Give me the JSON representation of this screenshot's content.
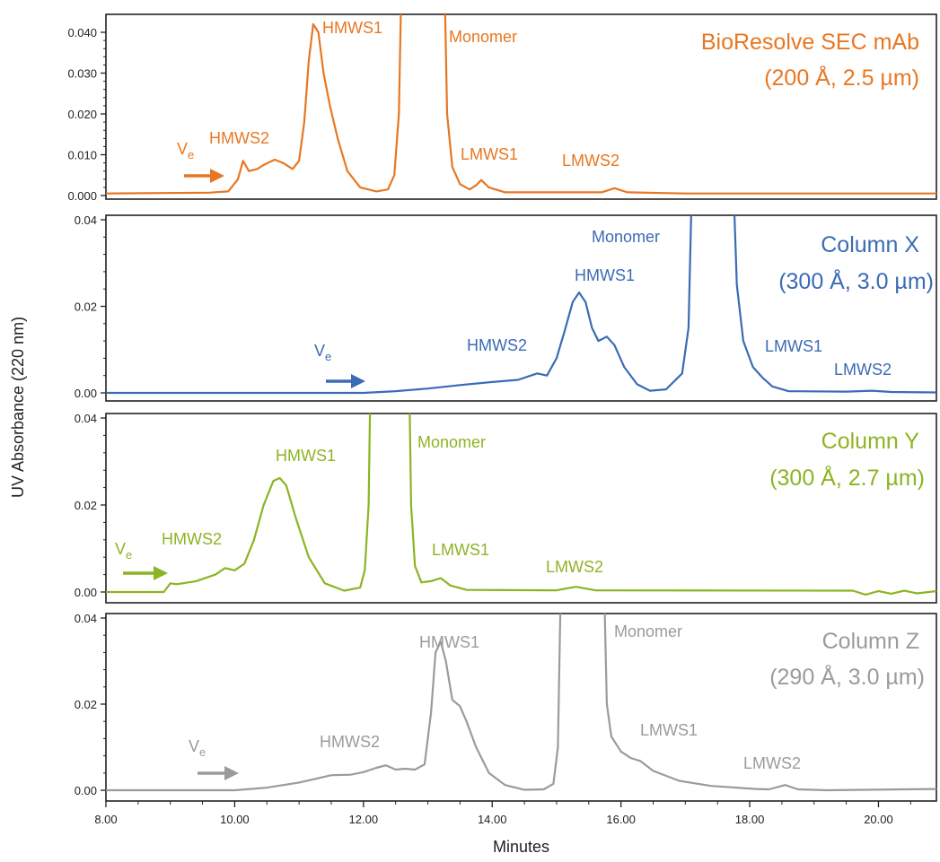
{
  "chart_data": {
    "type": "line",
    "xlabel": "Minutes",
    "ylabel": "UV Absorbance (220 nm)",
    "x_ticks": [
      "8.00",
      "10.00",
      "12.00",
      "14.00",
      "16.00",
      "18.00",
      "20.00"
    ],
    "xlim": [
      8.0,
      20.9
    ],
    "grid": false,
    "legend": "none",
    "panels": [
      {
        "name_line1": "BioResolve SEC mAb",
        "name_line2": "(200 Å, 2.5 µm)",
        "color": "#e87722",
        "ylim": [
          0.0,
          0.044
        ],
        "y_ticks": [
          {
            "v": 0.0,
            "label": "0.000"
          },
          {
            "v": 0.01,
            "label": "0.010"
          },
          {
            "v": 0.02,
            "label": "0.020"
          },
          {
            "v": 0.03,
            "label": "0.030"
          },
          {
            "v": 0.04,
            "label": "0.040"
          }
        ],
        "marker_text": "V",
        "marker_sub": "e",
        "peaks": {
          "monomer": "Monomer",
          "hmws1": "HMWS1",
          "hmws2": "HMWS2",
          "lmws1": "LMWS1",
          "lmws2": "LMWS2"
        },
        "points": [
          [
            8.0,
            0.0005
          ],
          [
            9.6,
            0.0007
          ],
          [
            9.9,
            0.001
          ],
          [
            10.05,
            0.004
          ],
          [
            10.13,
            0.0085
          ],
          [
            10.22,
            0.006
          ],
          [
            10.35,
            0.0065
          ],
          [
            10.45,
            0.0075
          ],
          [
            10.62,
            0.0088
          ],
          [
            10.75,
            0.008
          ],
          [
            10.9,
            0.0065
          ],
          [
            11.0,
            0.0085
          ],
          [
            11.08,
            0.018
          ],
          [
            11.15,
            0.033
          ],
          [
            11.22,
            0.042
          ],
          [
            11.3,
            0.04
          ],
          [
            11.38,
            0.03
          ],
          [
            11.48,
            0.022
          ],
          [
            11.6,
            0.014
          ],
          [
            11.75,
            0.006
          ],
          [
            11.95,
            0.002
          ],
          [
            12.2,
            0.001
          ],
          [
            12.38,
            0.0015
          ],
          [
            12.48,
            0.005
          ],
          [
            12.55,
            0.02
          ],
          [
            12.6,
            0.06
          ],
          [
            13.25,
            0.06
          ],
          [
            13.3,
            0.02
          ],
          [
            13.38,
            0.007
          ],
          [
            13.5,
            0.0028
          ],
          [
            13.65,
            0.0015
          ],
          [
            13.75,
            0.0025
          ],
          [
            13.83,
            0.0038
          ],
          [
            13.95,
            0.002
          ],
          [
            14.2,
            0.0008
          ],
          [
            15.7,
            0.0008
          ],
          [
            15.9,
            0.0018
          ],
          [
            16.1,
            0.0008
          ],
          [
            17.0,
            0.0005
          ],
          [
            20.9,
            0.0005
          ]
        ]
      },
      {
        "name_line1": "Column X",
        "name_line2": "(300 Å, 3.0 µm)",
        "color": "#3b6bb5",
        "ylim": [
          -0.001,
          0.04
        ],
        "y_ticks": [
          {
            "v": 0.0,
            "label": "0.00"
          },
          {
            "v": 0.02,
            "label": "0.02"
          },
          {
            "v": 0.04,
            "label": "0.04"
          }
        ],
        "marker_text": "V",
        "marker_sub": "e",
        "peaks": {
          "monomer": "Monomer",
          "hmws1": "HMWS1",
          "hmws2": "HMWS2",
          "lmws1": "LMWS1",
          "lmws2": "LMWS2"
        },
        "points": [
          [
            8.0,
            0.0
          ],
          [
            12.0,
            0.0
          ],
          [
            12.5,
            0.0004
          ],
          [
            13.0,
            0.001
          ],
          [
            13.5,
            0.0018
          ],
          [
            14.0,
            0.0025
          ],
          [
            14.4,
            0.003
          ],
          [
            14.7,
            0.0045
          ],
          [
            14.85,
            0.004
          ],
          [
            15.0,
            0.008
          ],
          [
            15.12,
            0.014
          ],
          [
            15.25,
            0.021
          ],
          [
            15.35,
            0.0232
          ],
          [
            15.45,
            0.021
          ],
          [
            15.55,
            0.015
          ],
          [
            15.65,
            0.012
          ],
          [
            15.78,
            0.013
          ],
          [
            15.9,
            0.011
          ],
          [
            16.05,
            0.006
          ],
          [
            16.25,
            0.002
          ],
          [
            16.45,
            0.0005
          ],
          [
            16.7,
            0.0008
          ],
          [
            16.95,
            0.0045
          ],
          [
            17.05,
            0.015
          ],
          [
            17.12,
            0.06
          ],
          [
            17.72,
            0.06
          ],
          [
            17.8,
            0.025
          ],
          [
            17.9,
            0.012
          ],
          [
            18.05,
            0.006
          ],
          [
            18.2,
            0.0035
          ],
          [
            18.35,
            0.0015
          ],
          [
            18.6,
            0.0004
          ],
          [
            19.5,
            0.0003
          ],
          [
            19.9,
            0.0005
          ],
          [
            20.2,
            0.0002
          ],
          [
            20.9,
            0.0001
          ]
        ]
      },
      {
        "name_line1": "Column Y",
        "name_line2": "(300 Å, 2.7 µm)",
        "color": "#8cb423",
        "ylim": [
          -0.001,
          0.04
        ],
        "y_ticks": [
          {
            "v": 0.0,
            "label": "0.00"
          },
          {
            "v": 0.02,
            "label": "0.02"
          },
          {
            "v": 0.04,
            "label": "0.04"
          }
        ],
        "marker_text": "V",
        "marker_sub": "e",
        "peaks": {
          "monomer": "Monomer",
          "hmws1": "HMWS1",
          "hmws2": "HMWS2",
          "lmws1": "LMWS1",
          "lmws2": "LMWS2"
        },
        "points": [
          [
            8.0,
            0.0
          ],
          [
            8.9,
            0.0
          ],
          [
            9.0,
            0.002
          ],
          [
            9.1,
            0.0018
          ],
          [
            9.4,
            0.0025
          ],
          [
            9.7,
            0.004
          ],
          [
            9.85,
            0.0055
          ],
          [
            10.0,
            0.005
          ],
          [
            10.15,
            0.0065
          ],
          [
            10.3,
            0.012
          ],
          [
            10.45,
            0.02
          ],
          [
            10.6,
            0.0255
          ],
          [
            10.7,
            0.0262
          ],
          [
            10.8,
            0.0245
          ],
          [
            10.95,
            0.017
          ],
          [
            11.15,
            0.008
          ],
          [
            11.4,
            0.002
          ],
          [
            11.7,
            0.0003
          ],
          [
            11.95,
            0.001
          ],
          [
            12.02,
            0.005
          ],
          [
            12.08,
            0.02
          ],
          [
            12.12,
            0.06
          ],
          [
            12.7,
            0.06
          ],
          [
            12.74,
            0.02
          ],
          [
            12.8,
            0.006
          ],
          [
            12.9,
            0.0022
          ],
          [
            13.05,
            0.0025
          ],
          [
            13.2,
            0.0032
          ],
          [
            13.35,
            0.0015
          ],
          [
            13.6,
            0.0005
          ],
          [
            15.0,
            0.0004
          ],
          [
            15.3,
            0.0012
          ],
          [
            15.6,
            0.0004
          ],
          [
            19.6,
            0.0003
          ],
          [
            19.8,
            -0.0006
          ],
          [
            20.0,
            0.0002
          ],
          [
            20.2,
            -0.0004
          ],
          [
            20.4,
            0.0003
          ],
          [
            20.6,
            -0.0003
          ],
          [
            20.9,
            0.0002
          ]
        ]
      },
      {
        "name_line1": "Column Z",
        "name_line2": "(290 Å, 3.0 µm)",
        "color": "#9b9b9b",
        "ylim": [
          -0.001,
          0.04
        ],
        "y_ticks": [
          {
            "v": 0.0,
            "label": "0.00"
          },
          {
            "v": 0.02,
            "label": "0.02"
          },
          {
            "v": 0.04,
            "label": "0.04"
          }
        ],
        "marker_text": "V",
        "marker_sub": "e",
        "peaks": {
          "monomer": "Monomer",
          "hmws1": "HMWS1",
          "hmws2": "HMWS2",
          "lmws1": "LMWS1",
          "lmws2": "LMWS2"
        },
        "points": [
          [
            8.0,
            0.0
          ],
          [
            10.0,
            0.0
          ],
          [
            10.5,
            0.0006
          ],
          [
            11.0,
            0.0018
          ],
          [
            11.3,
            0.0028
          ],
          [
            11.5,
            0.0035
          ],
          [
            11.8,
            0.0036
          ],
          [
            12.0,
            0.0042
          ],
          [
            12.2,
            0.0052
          ],
          [
            12.35,
            0.0058
          ],
          [
            12.5,
            0.0048
          ],
          [
            12.65,
            0.005
          ],
          [
            12.8,
            0.0048
          ],
          [
            12.95,
            0.006
          ],
          [
            13.05,
            0.018
          ],
          [
            13.12,
            0.032
          ],
          [
            13.2,
            0.0345
          ],
          [
            13.28,
            0.03
          ],
          [
            13.38,
            0.021
          ],
          [
            13.5,
            0.0195
          ],
          [
            13.6,
            0.016
          ],
          [
            13.75,
            0.01
          ],
          [
            13.95,
            0.004
          ],
          [
            14.2,
            0.0012
          ],
          [
            14.5,
            0.0001
          ],
          [
            14.8,
            0.0002
          ],
          [
            14.95,
            0.0015
          ],
          [
            15.02,
            0.01
          ],
          [
            15.08,
            0.06
          ],
          [
            15.72,
            0.06
          ],
          [
            15.78,
            0.02
          ],
          [
            15.85,
            0.0125
          ],
          [
            16.0,
            0.009
          ],
          [
            16.15,
            0.0075
          ],
          [
            16.3,
            0.0068
          ],
          [
            16.5,
            0.0045
          ],
          [
            16.9,
            0.0022
          ],
          [
            17.4,
            0.001
          ],
          [
            18.1,
            0.0003
          ],
          [
            18.3,
            0.0002
          ],
          [
            18.55,
            0.0012
          ],
          [
            18.75,
            0.0002
          ],
          [
            19.2,
            0.0
          ],
          [
            20.9,
            0.0003
          ]
        ]
      }
    ]
  }
}
